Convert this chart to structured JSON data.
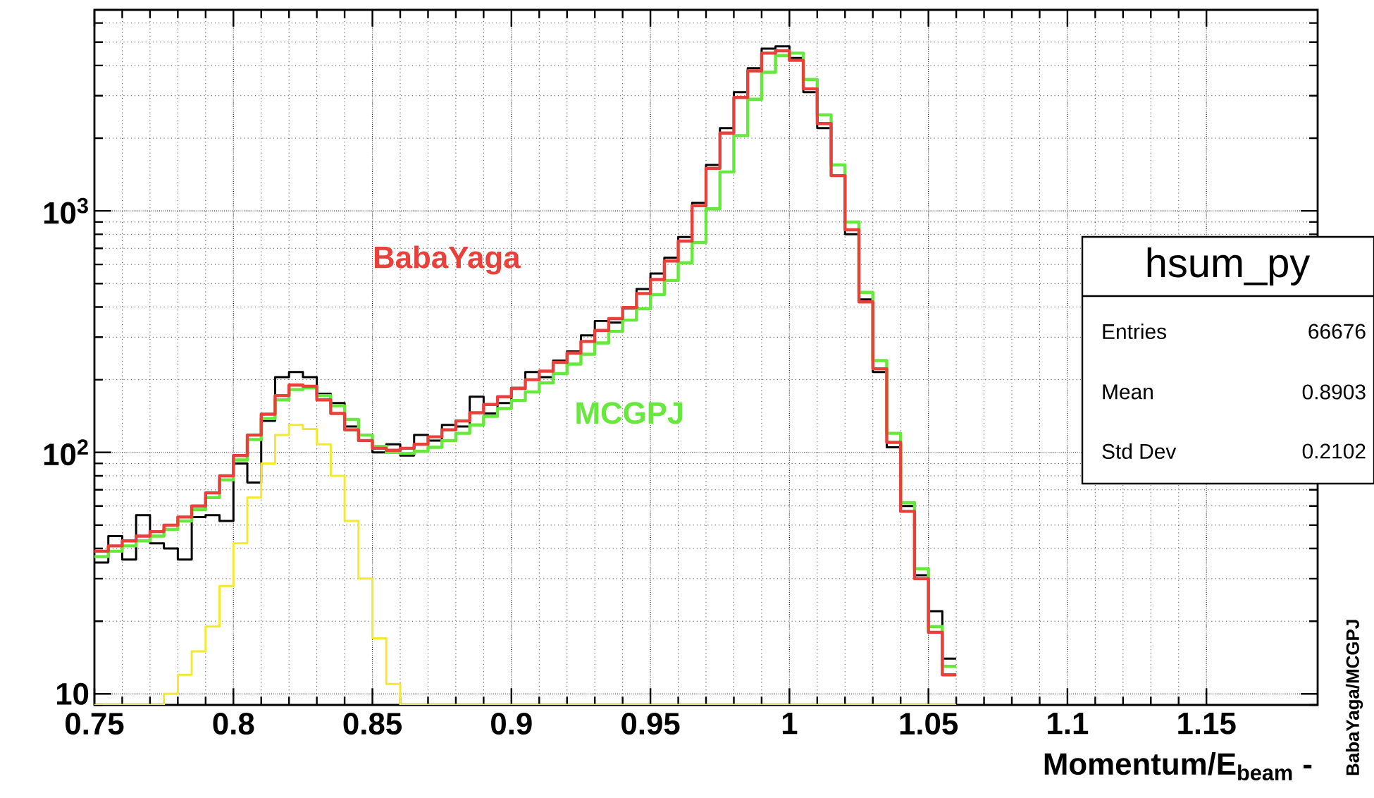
{
  "chart_data": {
    "type": "histogram",
    "xlabel": "Momentum/E$_{beam}$ -",
    "log": true,
    "grid": true,
    "xlim": [
      0.75,
      1.19
    ],
    "ylim": [
      9,
      6800
    ],
    "xticks": [
      0.75,
      0.8,
      0.85,
      0.9,
      0.95,
      1,
      1.05,
      1.1,
      1.15
    ],
    "yticks": [
      {
        "value": 10,
        "label": "10"
      },
      {
        "value": 100,
        "label": "10$^{2}$"
      },
      {
        "value": 1000,
        "label": "10$^{3}$"
      }
    ],
    "bins": [
      0.75,
      0.755,
      0.76,
      0.765,
      0.77,
      0.775,
      0.78,
      0.785,
      0.79,
      0.795,
      0.8,
      0.805,
      0.81,
      0.815,
      0.82,
      0.825,
      0.83,
      0.835,
      0.84,
      0.845,
      0.85,
      0.855,
      0.86,
      0.865,
      0.87,
      0.875,
      0.88,
      0.885,
      0.89,
      0.895,
      0.9,
      0.905,
      0.91,
      0.915,
      0.92,
      0.925,
      0.93,
      0.935,
      0.94,
      0.945,
      0.95,
      0.955,
      0.96,
      0.965,
      0.97,
      0.975,
      0.98,
      0.985,
      0.99,
      0.995,
      1.0,
      1.005,
      1.01,
      1.015,
      1.02,
      1.025,
      1.03,
      1.035,
      1.04,
      1.045,
      1.05,
      1.055,
      1.06
    ],
    "series": [
      {
        "color": "#000000",
        "values": [
          35,
          45,
          36,
          55,
          42,
          40,
          36,
          54,
          55,
          52,
          90,
          75,
          135,
          205,
          215,
          205,
          175,
          160,
          128,
          112,
          100,
          108,
          97,
          118,
          112,
          130,
          128,
          170,
          145,
          160,
          185,
          215,
          205,
          240,
          262,
          305,
          350,
          345,
          395,
          475,
          550,
          640,
          780,
          1080,
          1550,
          2200,
          3100,
          3900,
          4700,
          4800,
          4300,
          3100,
          2200,
          1400,
          800,
          430,
          215,
          105,
          60,
          31,
          22,
          14
        ]
      },
      {
        "color": "#f2ea2e",
        "values": [
          null,
          null,
          null,
          null,
          null,
          10,
          12,
          15,
          19,
          28,
          42,
          65,
          90,
          118,
          130,
          125,
          108,
          80,
          52,
          30,
          17,
          11,
          null,
          null,
          null,
          null,
          null,
          null,
          null,
          null,
          null,
          null,
          null,
          null,
          null,
          null,
          null,
          null,
          null,
          null,
          null,
          null,
          null,
          null,
          null,
          null,
          null,
          null,
          null,
          null,
          null,
          null,
          null,
          null,
          null,
          null,
          null,
          null,
          null,
          null,
          null,
          null
        ]
      },
      {
        "name": "MCGPJ",
        "color": "#66e83c",
        "values": [
          37,
          39,
          41,
          43,
          45,
          48,
          52,
          58,
          65,
          77,
          93,
          113,
          138,
          165,
          182,
          185,
          172,
          156,
          137,
          118,
          106,
          100,
          99,
          101,
          105,
          112,
          120,
          130,
          141,
          152,
          164,
          178,
          194,
          212,
          232,
          255,
          284,
          317,
          353,
          393,
          450,
          515,
          610,
          740,
          1020,
          1450,
          2050,
          2900,
          3750,
          4400,
          4500,
          3500,
          2500,
          1550,
          900,
          460,
          240,
          120,
          62,
          33,
          19,
          13
        ]
      },
      {
        "name": "BabaYaga",
        "color": "#e8403a",
        "values": [
          39,
          41,
          43,
          45,
          47,
          50,
          54,
          60,
          68,
          80,
          97,
          118,
          144,
          172,
          190,
          188,
          165,
          145,
          124,
          112,
          104,
          102,
          104,
          108,
          116,
          124,
          135,
          146,
          158,
          170,
          184,
          200,
          217,
          236,
          258,
          288,
          320,
          358,
          398,
          455,
          520,
          620,
          750,
          1050,
          1500,
          2100,
          2950,
          3800,
          4500,
          4600,
          4200,
          3200,
          2300,
          1400,
          835,
          420,
          222,
          110,
          57,
          30,
          18,
          12
        ]
      }
    ],
    "annotations": [
      "hsum_py",
      "Entries",
      "66676",
      "Mean",
      "0.8903",
      "Std Dev",
      "0.2102",
      "BabaYaga/MCGPJ"
    ]
  }
}
